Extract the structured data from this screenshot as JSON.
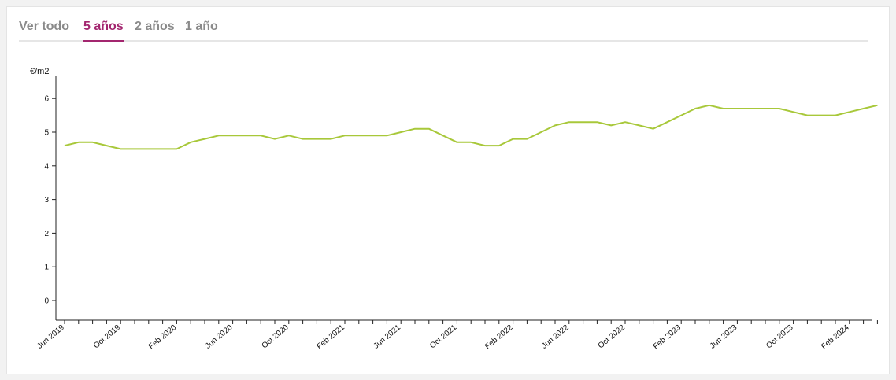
{
  "tabs": [
    {
      "label": "Ver todo",
      "active": false
    },
    {
      "label": "5 años",
      "active": true
    },
    {
      "label": "2 años",
      "active": false
    },
    {
      "label": "1 año",
      "active": false
    }
  ],
  "colors": {
    "accent": "#a3266f",
    "line": "#a8c83a",
    "tab_inactive": "#8a8a8a"
  },
  "chart_data": {
    "type": "line",
    "title": "",
    "ylabel": "€/m2",
    "xlabel": "",
    "ylim": [
      -0.6,
      6.6
    ],
    "yticks": [
      0,
      1,
      2,
      3,
      4,
      5,
      6
    ],
    "grid": false,
    "x_labels": [
      "Jun 2019",
      "Oct 2019",
      "Feb 2020",
      "Jun 2020",
      "Oct 2020",
      "Feb 2021",
      "Jun 2021",
      "Oct 2021",
      "Feb 2022",
      "Jun 2022",
      "Oct 2022",
      "Feb 2023",
      "Jun 2023",
      "Oct 2023",
      "Feb 2024"
    ],
    "x_label_month_index": [
      0,
      4,
      8,
      12,
      16,
      20,
      24,
      28,
      32,
      36,
      40,
      44,
      48,
      52,
      56
    ],
    "series": [
      {
        "values": [
          4.6,
          4.7,
          4.7,
          4.6,
          4.5,
          4.5,
          4.5,
          4.5,
          4.5,
          4.7,
          4.8,
          4.9,
          4.9,
          4.9,
          4.9,
          4.8,
          4.9,
          4.8,
          4.8,
          4.8,
          4.9,
          4.9,
          4.9,
          4.9,
          5.0,
          5.1,
          5.1,
          4.9,
          4.7,
          4.7,
          4.6,
          4.6,
          4.8,
          4.8,
          5.0,
          5.2,
          5.3,
          5.3,
          5.3,
          5.2,
          5.3,
          5.2,
          5.1,
          5.3,
          5.5,
          5.7,
          5.8,
          5.7,
          5.7,
          5.7,
          5.7,
          5.7,
          5.6,
          5.5,
          5.5,
          5.5,
          5.6,
          5.7,
          5.8
        ]
      }
    ]
  }
}
